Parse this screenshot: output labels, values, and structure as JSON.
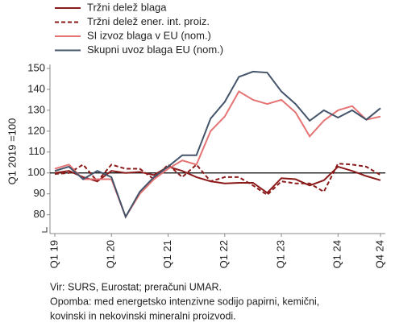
{
  "chart_data": {
    "type": "line",
    "y_label": "Q1 2019 =100",
    "categories": [
      "Q1 19",
      null,
      null,
      null,
      "Q1 20",
      null,
      null,
      null,
      "Q1 21",
      null,
      null,
      null,
      "Q1 22",
      null,
      null,
      null,
      "Q1 23",
      null,
      null,
      null,
      "Q1 24",
      null,
      null,
      "Q4 24"
    ],
    "series": [
      {
        "name": "Tržni delež blaga",
        "color": "#8b1a1a",
        "dash": false,
        "values": [
          100,
          101,
          98,
          96,
          101,
          100,
          100.5,
          99,
          103,
          101,
          98,
          96,
          95,
          95.3,
          95.3,
          90.5,
          97.5,
          97,
          94,
          96.5,
          103,
          101,
          98.5,
          96.5
        ]
      },
      {
        "name": "Tržni delež ener. int. proiz.",
        "color": "#8b1a1a",
        "dash": true,
        "values": [
          99.5,
          100,
          104,
          96,
          104,
          102,
          102,
          97,
          104,
          98,
          104,
          96,
          98,
          98,
          94,
          89.5,
          96,
          95,
          95,
          91,
          104.5,
          104,
          103,
          99
        ]
      },
      {
        "name": "SI izvoz blaga v EU (nom.)",
        "color": "#e57373",
        "dash": false,
        "values": [
          102,
          104,
          97,
          97,
          97,
          79,
          90,
          97,
          102,
          106,
          104,
          120,
          127,
          139,
          135,
          133,
          135,
          129,
          117.5,
          125,
          130,
          132,
          125.5,
          127
        ]
      },
      {
        "name": "Skupni uvoz blaga EU (nom.)",
        "color": "#44546a",
        "dash": false,
        "values": [
          101,
          103,
          97,
          101,
          98,
          79,
          91,
          98,
          103,
          108.5,
          108.5,
          126,
          134,
          146,
          148.5,
          148,
          139,
          133,
          125,
          130,
          126.5,
          130,
          125.5,
          131
        ]
      }
    ],
    "reference_line": 100,
    "ylim": [
      71,
      150
    ],
    "yticks": [
      80,
      90,
      100,
      110,
      120,
      130,
      140,
      150
    ],
    "notes": [
      "Vir: SURS, Eurostat; preračuni UMAR.",
      "Opomba: med energetsko intenzivne sodijo papirni, kemični,",
      "kovinski in nekovinski mineralni proizvodi."
    ]
  }
}
